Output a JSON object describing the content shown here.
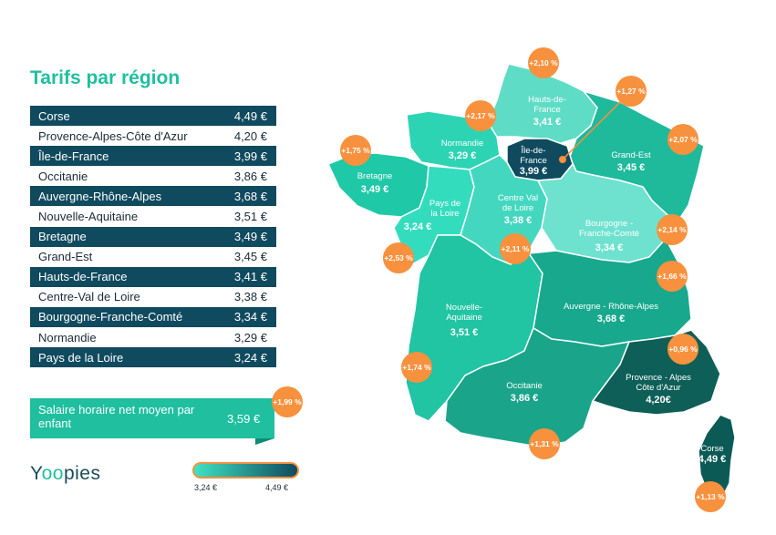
{
  "title": "Tarifs par région",
  "table": [
    {
      "region": "Corse",
      "price": "4,49 €"
    },
    {
      "region": "Provence-Alpes-Côte d'Azur",
      "price": "4,20 €"
    },
    {
      "region": "Île-de-France",
      "price": "3,99 €"
    },
    {
      "region": "Occitanie",
      "price": "3,86 €"
    },
    {
      "region": "Auvergne-Rhône-Alpes",
      "price": "3,68 €"
    },
    {
      "region": "Nouvelle-Aquitaine",
      "price": "3,51 €"
    },
    {
      "region": "Bretagne",
      "price": "3,49 €"
    },
    {
      "region": "Grand-Est",
      "price": "3,45 €"
    },
    {
      "region": "Hauts-de-France",
      "price": "3,41 €"
    },
    {
      "region": "Centre-Val de Loire",
      "price": "3,38 €"
    },
    {
      "region": "Bourgogne-Franche-Comté",
      "price": "3,34 €"
    },
    {
      "region": "Normandie",
      "price": "3,29 €"
    },
    {
      "region": "Pays de la Loire",
      "price": "3,24 €"
    }
  ],
  "salary": {
    "label": "Salaire horaire net moyen par enfant",
    "value": "3,59 €",
    "change": "+1,99 %"
  },
  "logo": {
    "y": "Y",
    "oo": "oo",
    "rest": "pies"
  },
  "legend": {
    "min": "3,24 €",
    "max": "4,49 €",
    "color_low": "#3fe2c3",
    "color_high": "#104a5e",
    "border": "#f7913d"
  },
  "colors": {
    "accent": "#1fbfa0",
    "dark": "#104a5e",
    "badge": "#f7913d"
  },
  "map": {
    "hdf": {
      "name": "Hauts-de-\nFrance",
      "value": "3,41 €",
      "change": "+2,10 %"
    },
    "idf": {
      "name": "Île-de-\nFrance",
      "value": "3,99 €",
      "change": "+1,27 %"
    },
    "nor": {
      "name": "Normandie",
      "value": "3,29 €",
      "change": "+2,17 %"
    },
    "bre": {
      "name": "Bretagne",
      "value": "3,49 €",
      "change": "+1,75 %"
    },
    "ge": {
      "name": "Grand-Est",
      "value": "3,45 €",
      "change": "+2,07 %"
    },
    "pdl": {
      "name": "Pays de\nla Loire",
      "value": "3,24 €",
      "change": "+2,53 %"
    },
    "cvl": {
      "name": "Centre Val\nde Loire",
      "value": "3,38 €",
      "change": "+2,11 %"
    },
    "bfc": {
      "name": "Bourgogne -\nFranche-Comté",
      "value": "3,34 €",
      "change": "+2,14 %"
    },
    "ara": {
      "name": "Auvergne - Rhône-Alpes",
      "value": "3,68 €",
      "change": "+1,66 %"
    },
    "na": {
      "name": "Nouvelle-\nAquitaine",
      "value": "3,51 €",
      "change": "+1,74 %"
    },
    "occ": {
      "name": "Occitanie",
      "value": "3,86 €",
      "change": "+1,31 %"
    },
    "paca": {
      "name": "Provence - Alpes\nCôte d'Azur",
      "value": "4,20€",
      "change": "+0,96 %"
    },
    "cor": {
      "name": "Corse",
      "value": "4,49 €",
      "change": "+1,13 %"
    }
  }
}
